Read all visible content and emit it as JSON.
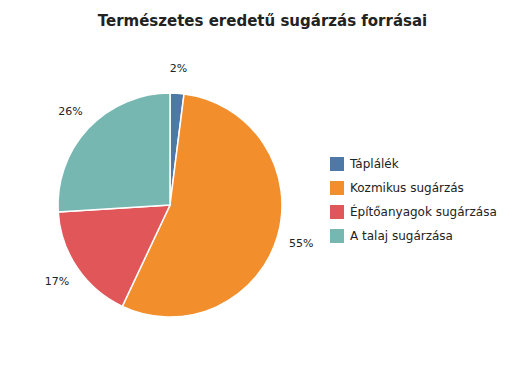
{
  "chart_data": {
    "type": "pie",
    "title": "Természetes eredetű sugárzás forrásai",
    "categories": [
      "Táplálék",
      "Kozmikus sugárzás",
      "Építőanyagok sugárzása",
      "A talaj sugárzása"
    ],
    "values": [
      2,
      55,
      17,
      26
    ],
    "value_labels": [
      "2%",
      "55%",
      "17%",
      "26%"
    ],
    "data_labels": true,
    "legend": "right"
  }
}
